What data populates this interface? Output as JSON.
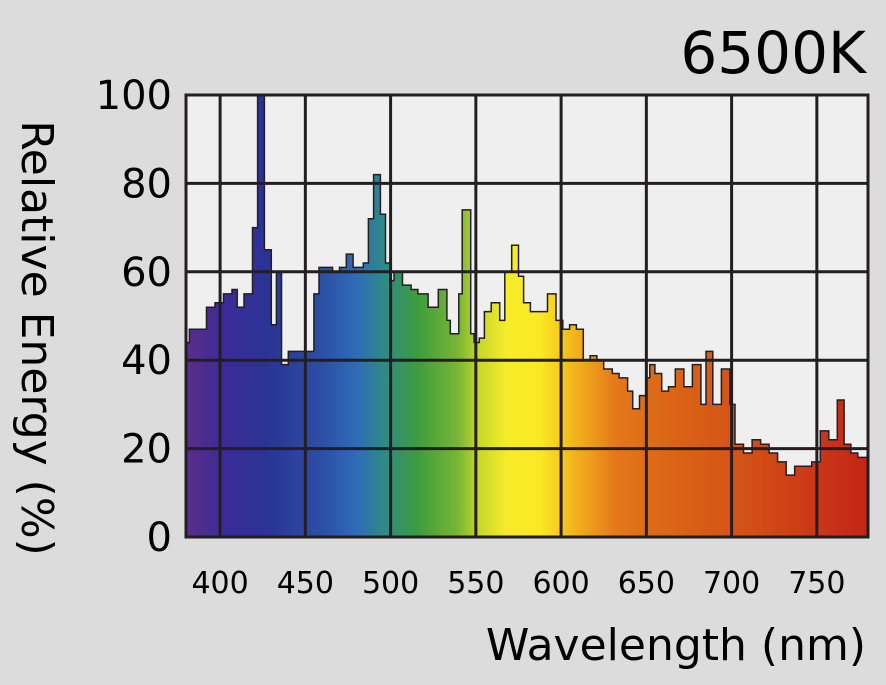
{
  "chart_data": {
    "type": "area",
    "title": "6500K",
    "xlabel": "Wavelength (nm)",
    "ylabel": "Relative Energy (%)",
    "xlim": [
      380,
      780
    ],
    "ylim": [
      0,
      100
    ],
    "x_ticks": [
      400,
      450,
      500,
      550,
      600,
      650,
      700,
      750
    ],
    "y_ticks": [
      0,
      20,
      40,
      60,
      80,
      100
    ],
    "grid": true,
    "fill": "visible-spectrum-gradient",
    "x": [
      380,
      382,
      386,
      392,
      397,
      402,
      407,
      410,
      414,
      419,
      422,
      426,
      430,
      433,
      436,
      440,
      448,
      455,
      458,
      462,
      466,
      470,
      474,
      478,
      484,
      487,
      490,
      494,
      497,
      500,
      502,
      507,
      512,
      516,
      522,
      528,
      533,
      535,
      540,
      542,
      547,
      549,
      552,
      555,
      559,
      564,
      567,
      571,
      575,
      578,
      582,
      587,
      592,
      597,
      601,
      605,
      609,
      613,
      617,
      621,
      625,
      630,
      634,
      639,
      642,
      646,
      650,
      652,
      655,
      659,
      663,
      667,
      672,
      677,
      682,
      685,
      689,
      694,
      699,
      702,
      707,
      712,
      717,
      722,
      727,
      732,
      737,
      742,
      747,
      752,
      757,
      762,
      766,
      770,
      774,
      777,
      780
    ],
    "values": [
      44,
      47,
      47,
      52,
      53,
      55,
      56,
      52,
      55,
      70,
      100,
      65,
      48,
      60,
      39,
      42,
      42,
      55,
      61,
      61,
      60,
      61,
      64,
      61,
      62,
      72,
      82,
      73,
      62,
      58,
      60,
      57,
      56,
      55,
      52,
      56,
      49,
      46,
      55,
      74,
      46,
      44,
      45,
      51,
      53,
      49,
      60,
      66,
      59,
      53,
      51,
      51,
      55,
      49,
      47,
      48,
      47,
      40,
      41,
      40,
      38,
      37,
      36,
      33,
      29,
      32,
      36,
      39,
      37,
      33,
      34,
      38,
      34,
      39,
      30,
      42,
      30,
      38,
      30,
      21,
      19,
      22,
      21,
      19,
      17,
      14,
      16,
      16,
      17,
      24,
      22,
      31,
      21,
      19,
      18,
      18,
      20
    ]
  }
}
